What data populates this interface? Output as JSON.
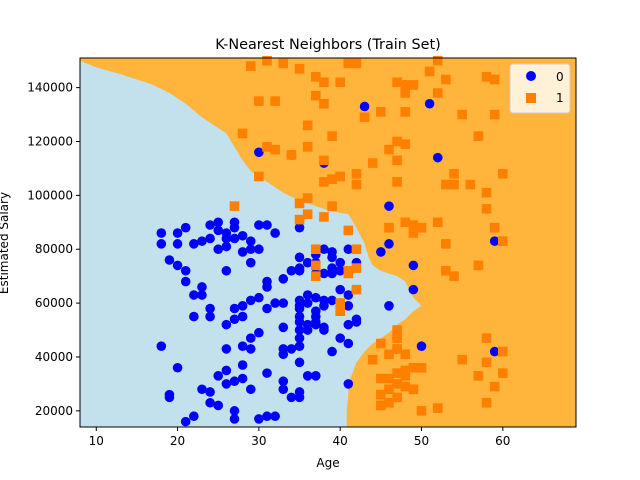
{
  "chart_data": {
    "type": "scatter",
    "title": "K-Nearest Neighbors (Train Set)",
    "xlabel": "Age",
    "ylabel": "Estimated Salary",
    "xlim": [
      8,
      69
    ],
    "ylim": [
      14000,
      151000
    ],
    "xticks": [
      10,
      20,
      30,
      40,
      50,
      60
    ],
    "yticks": [
      20000,
      40000,
      60000,
      80000,
      100000,
      120000,
      140000
    ],
    "grid": false,
    "legend_position": "top-right",
    "colors": {
      "region_0": "#c2e1ec",
      "region_1": "#ffb43c",
      "class_0": "#0000ff",
      "class_1": "#ff8000"
    },
    "decision_boundary": [
      [
        8,
        150000
      ],
      [
        10,
        147500
      ],
      [
        13,
        145000
      ],
      [
        15,
        143000
      ],
      [
        17,
        141000
      ],
      [
        19,
        138000
      ],
      [
        21,
        134000
      ],
      [
        23,
        129000
      ],
      [
        26,
        123000
      ],
      [
        27,
        118000
      ],
      [
        28,
        113000
      ],
      [
        29,
        109000
      ],
      [
        31,
        105000
      ],
      [
        33,
        101000
      ],
      [
        35,
        98000
      ],
      [
        37,
        96000
      ],
      [
        39,
        94000
      ],
      [
        41,
        93000
      ],
      [
        42,
        88000
      ],
      [
        43,
        82000
      ],
      [
        43.5,
        77000
      ],
      [
        44,
        74000
      ],
      [
        45,
        72000
      ],
      [
        46,
        71000
      ],
      [
        47,
        70000
      ],
      [
        48,
        68000
      ],
      [
        48.5,
        65000
      ],
      [
        49,
        62000
      ],
      [
        50,
        59000
      ],
      [
        49,
        57000
      ],
      [
        48,
        54000
      ],
      [
        47,
        52000
      ],
      [
        46,
        49000
      ],
      [
        45,
        47000
      ],
      [
        44,
        45000
      ],
      [
        43,
        42000
      ],
      [
        42,
        38000
      ],
      [
        41.5,
        34000
      ],
      [
        41,
        30000
      ],
      [
        41,
        26000
      ],
      [
        40.8,
        20000
      ],
      [
        40.8,
        14000
      ]
    ],
    "series": [
      {
        "name": "0",
        "marker": "circle",
        "points": [
          [
            18,
            86000
          ],
          [
            18,
            82000
          ],
          [
            18,
            44000
          ],
          [
            19,
            76000
          ],
          [
            19,
            26000
          ],
          [
            19,
            25000
          ],
          [
            20,
            86000
          ],
          [
            20,
            82000
          ],
          [
            20,
            74000
          ],
          [
            20,
            36000
          ],
          [
            21,
            88000
          ],
          [
            21,
            72000
          ],
          [
            21,
            68000
          ],
          [
            21,
            16000
          ],
          [
            22,
            82000
          ],
          [
            22,
            63000
          ],
          [
            22,
            55000
          ],
          [
            22,
            18000
          ],
          [
            23,
            83000
          ],
          [
            23,
            66000
          ],
          [
            23,
            63000
          ],
          [
            23,
            28000
          ],
          [
            24,
            89000
          ],
          [
            24,
            84000
          ],
          [
            24,
            58000
          ],
          [
            24,
            55000
          ],
          [
            24,
            27000
          ],
          [
            24,
            23000
          ],
          [
            25,
            90000
          ],
          [
            25,
            87000
          ],
          [
            25,
            80000
          ],
          [
            25,
            33000
          ],
          [
            25,
            22000
          ],
          [
            26,
            86000
          ],
          [
            26,
            84000
          ],
          [
            26,
            81000
          ],
          [
            26,
            72000
          ],
          [
            26,
            52000
          ],
          [
            26,
            43000
          ],
          [
            26,
            35000
          ],
          [
            26,
            30000
          ],
          [
            27,
            90000
          ],
          [
            27,
            88000
          ],
          [
            27,
            84000
          ],
          [
            27,
            58000
          ],
          [
            27,
            54000
          ],
          [
            27,
            31000
          ],
          [
            27,
            20000
          ],
          [
            27,
            17000
          ],
          [
            28,
            85000
          ],
          [
            28,
            79000
          ],
          [
            28,
            59000
          ],
          [
            28,
            55000
          ],
          [
            28,
            44000
          ],
          [
            28,
            37000
          ],
          [
            28,
            32000
          ],
          [
            29,
            83000
          ],
          [
            29,
            80000
          ],
          [
            29,
            75000
          ],
          [
            29,
            61000
          ],
          [
            29,
            47000
          ],
          [
            29,
            43000
          ],
          [
            29,
            28000
          ],
          [
            30,
            116000
          ],
          [
            30,
            89000
          ],
          [
            30,
            80000
          ],
          [
            30,
            62000
          ],
          [
            30,
            49000
          ],
          [
            30,
            17000
          ],
          [
            31,
            89000
          ],
          [
            31,
            68000
          ],
          [
            31,
            66000
          ],
          [
            31,
            58000
          ],
          [
            31,
            34000
          ],
          [
            31,
            18000
          ],
          [
            32,
            86000
          ],
          [
            32,
            60000
          ],
          [
            32,
            18000
          ],
          [
            33,
            69000
          ],
          [
            33,
            60000
          ],
          [
            33,
            51000
          ],
          [
            33,
            43000
          ],
          [
            33,
            41000
          ],
          [
            33,
            31000
          ],
          [
            33,
            28000
          ],
          [
            34,
            115000
          ],
          [
            34,
            72000
          ],
          [
            34,
            43000
          ],
          [
            34,
            25000
          ],
          [
            35,
            88000
          ],
          [
            35,
            77000
          ],
          [
            35,
            73000
          ],
          [
            35,
            72000
          ],
          [
            35,
            61000
          ],
          [
            35,
            59000
          ],
          [
            35,
            58000
          ],
          [
            35,
            55000
          ],
          [
            35,
            53000
          ],
          [
            35,
            50000
          ],
          [
            35,
            47000
          ],
          [
            35,
            44000
          ],
          [
            35,
            38000
          ],
          [
            35,
            27000
          ],
          [
            35,
            25000
          ],
          [
            36,
            75000
          ],
          [
            36,
            63000
          ],
          [
            36,
            60000
          ],
          [
            36,
            52000
          ],
          [
            36,
            50000
          ],
          [
            36,
            33000
          ],
          [
            37,
            80000
          ],
          [
            37,
            78000
          ],
          [
            37,
            75000
          ],
          [
            37,
            71000
          ],
          [
            37,
            62000
          ],
          [
            37,
            57000
          ],
          [
            37,
            55000
          ],
          [
            37,
            53000
          ],
          [
            37,
            52000
          ],
          [
            37,
            33000
          ],
          [
            38,
            112000
          ],
          [
            38,
            80000
          ],
          [
            38,
            71000
          ],
          [
            38,
            61000
          ],
          [
            38,
            59000
          ],
          [
            38,
            51000
          ],
          [
            38,
            50000
          ],
          [
            39,
            79000
          ],
          [
            39,
            77000
          ],
          [
            39,
            73000
          ],
          [
            39,
            71000
          ],
          [
            39,
            61000
          ],
          [
            39,
            42000
          ],
          [
            40,
            75000
          ],
          [
            40,
            72000
          ],
          [
            40,
            65000
          ],
          [
            40,
            60000
          ],
          [
            40,
            57000
          ],
          [
            40,
            47000
          ],
          [
            41,
            80000
          ],
          [
            41,
            72000
          ],
          [
            41,
            63000
          ],
          [
            41,
            59000
          ],
          [
            41,
            52000
          ],
          [
            41,
            45000
          ],
          [
            41,
            30000
          ],
          [
            42,
            75000
          ],
          [
            42,
            65000
          ],
          [
            42,
            54000
          ],
          [
            42,
            53000
          ],
          [
            43,
            133000
          ],
          [
            44,
            39000
          ],
          [
            45,
            79000
          ],
          [
            46,
            96000
          ],
          [
            46,
            82000
          ],
          [
            46,
            59000
          ],
          [
            47,
            43000
          ],
          [
            47,
            47000
          ],
          [
            48,
            141000
          ],
          [
            49,
            74000
          ],
          [
            49,
            65000
          ],
          [
            50,
            44000
          ],
          [
            51,
            134000
          ],
          [
            52,
            114000
          ],
          [
            59,
            83000
          ],
          [
            59,
            42000
          ]
        ]
      },
      {
        "name": "1",
        "marker": "square",
        "points": [
          [
            27,
            96000
          ],
          [
            28,
            123000
          ],
          [
            29,
            148000
          ],
          [
            30,
            135000
          ],
          [
            30,
            107000
          ],
          [
            31,
            118000
          ],
          [
            31,
            150000
          ],
          [
            32,
            117000
          ],
          [
            32,
            135000
          ],
          [
            33,
            149000
          ],
          [
            34,
            115000
          ],
          [
            35,
            147000
          ],
          [
            35,
            97000
          ],
          [
            35,
            91000
          ],
          [
            36,
            126000
          ],
          [
            36,
            118000
          ],
          [
            36,
            99000
          ],
          [
            36,
            93000
          ],
          [
            37,
            144000
          ],
          [
            37,
            137000
          ],
          [
            37,
            80000
          ],
          [
            37,
            74000
          ],
          [
            37,
            70000
          ],
          [
            38,
            142000
          ],
          [
            38,
            134000
          ],
          [
            38,
            113000
          ],
          [
            38,
            105000
          ],
          [
            38,
            92000
          ],
          [
            39,
            122000
          ],
          [
            39,
            106000
          ],
          [
            39,
            96000
          ],
          [
            40,
            142000
          ],
          [
            40,
            107000
          ],
          [
            40,
            60000
          ],
          [
            40,
            57000
          ],
          [
            41,
            149000
          ],
          [
            41,
            87000
          ],
          [
            41,
            71000
          ],
          [
            41,
            72000
          ],
          [
            42,
            149000
          ],
          [
            42,
            108000
          ],
          [
            42,
            104000
          ],
          [
            42,
            80000
          ],
          [
            42,
            73000
          ],
          [
            42,
            65000
          ],
          [
            43,
            129000
          ],
          [
            44,
            112000
          ],
          [
            44,
            39000
          ],
          [
            45,
            131000
          ],
          [
            45,
            45000
          ],
          [
            45,
            32000
          ],
          [
            45,
            26000
          ],
          [
            45,
            22000
          ],
          [
            46,
            117000
          ],
          [
            46,
            88000
          ],
          [
            46,
            41000
          ],
          [
            46,
            32000
          ],
          [
            46,
            28000
          ],
          [
            46,
            23000
          ],
          [
            47,
            142000
          ],
          [
            47,
            120000
          ],
          [
            47,
            113000
          ],
          [
            47,
            105000
          ],
          [
            47,
            50000
          ],
          [
            47,
            47000
          ],
          [
            47,
            43000
          ],
          [
            47,
            34000
          ],
          [
            47,
            30000
          ],
          [
            47,
            25000
          ],
          [
            48,
            141000
          ],
          [
            48,
            138000
          ],
          [
            48,
            131000
          ],
          [
            48,
            119000
          ],
          [
            48,
            90000
          ],
          [
            48,
            41000
          ],
          [
            48,
            33000
          ],
          [
            48,
            29000
          ],
          [
            48,
            35000
          ],
          [
            49,
            141000
          ],
          [
            49,
            89000
          ],
          [
            49,
            86000
          ],
          [
            49,
            28000
          ],
          [
            49,
            36000
          ],
          [
            50,
            88000
          ],
          [
            50,
            20000
          ],
          [
            50,
            36000
          ],
          [
            51,
            146000
          ],
          [
            52,
            150000
          ],
          [
            52,
            138000
          ],
          [
            52,
            90000
          ],
          [
            52,
            21000
          ],
          [
            53,
            143000
          ],
          [
            53,
            104000
          ],
          [
            53,
            82000
          ],
          [
            53,
            72000
          ],
          [
            54,
            108000
          ],
          [
            54,
            104000
          ],
          [
            54,
            70000
          ],
          [
            55,
            130000
          ],
          [
            55,
            39000
          ],
          [
            56,
            104000
          ],
          [
            57,
            122000
          ],
          [
            57,
            74000
          ],
          [
            57,
            33000
          ],
          [
            58,
            144000
          ],
          [
            58,
            101000
          ],
          [
            58,
            95000
          ],
          [
            58,
            47000
          ],
          [
            58,
            38000
          ],
          [
            58,
            23000
          ],
          [
            59,
            143000
          ],
          [
            59,
            130000
          ],
          [
            59,
            88000
          ],
          [
            59,
            29000
          ],
          [
            60,
            108000
          ],
          [
            60,
            83000
          ],
          [
            60,
            42000
          ],
          [
            60,
            34000
          ]
        ]
      }
    ]
  }
}
